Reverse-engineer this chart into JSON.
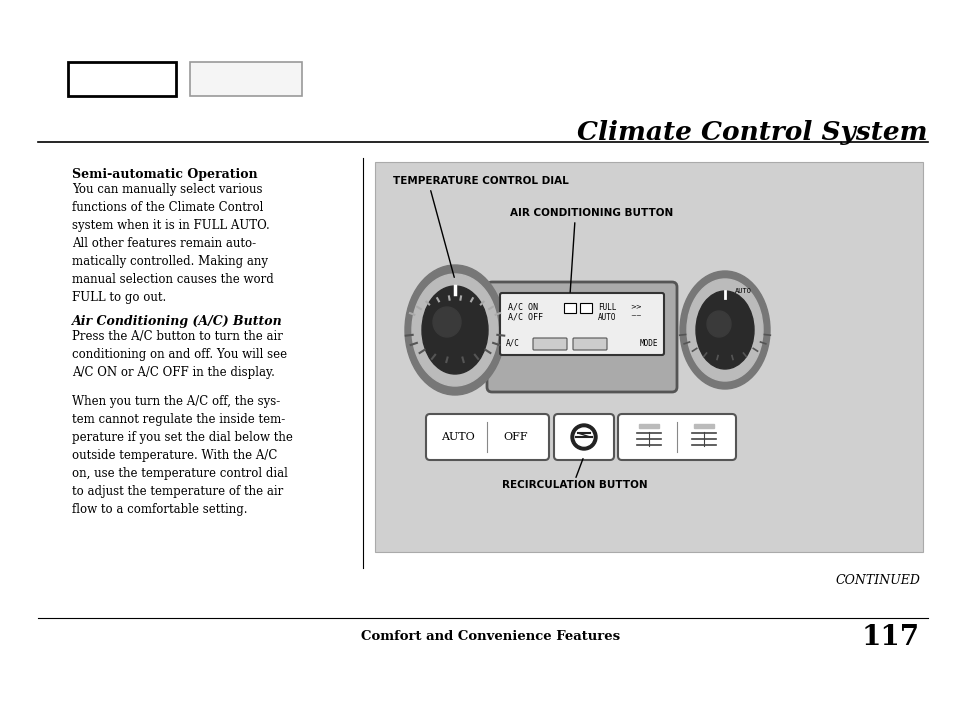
{
  "title": "Climate Control System",
  "page_num": "117",
  "footer_left": "Comfort and Convenience Features",
  "continued": "CONTINUED",
  "heading1": "Semi-automatic Operation",
  "para1": "You can manually select various\nfunctions of the Climate Control\nsystem when it is in FULL AUTO.\nAll other features remain auto-\nmatically controlled. Making any\nmanual selection causes the word\nFULL to go out.",
  "heading2_italic": "Air Conditioning (A/C) Button",
  "para2": "Press the A/C button to turn the air\nconditioning on and off. You will see\nA/C ON or A/C OFF in the display.",
  "para3": "When you turn the A/C off, the sys-\ntem cannot regulate the inside tem-\nperature if you set the dial below the\noutside temperature. With the A/C\non, use the temperature control dial\nto adjust the temperature of the air\nflow to a comfortable setting.",
  "label1": "TEMPERATURE CONTROL DIAL",
  "label2": "AIR CONDITIONING BUTTON",
  "label3": "RECIRCULATION BUTTON"
}
